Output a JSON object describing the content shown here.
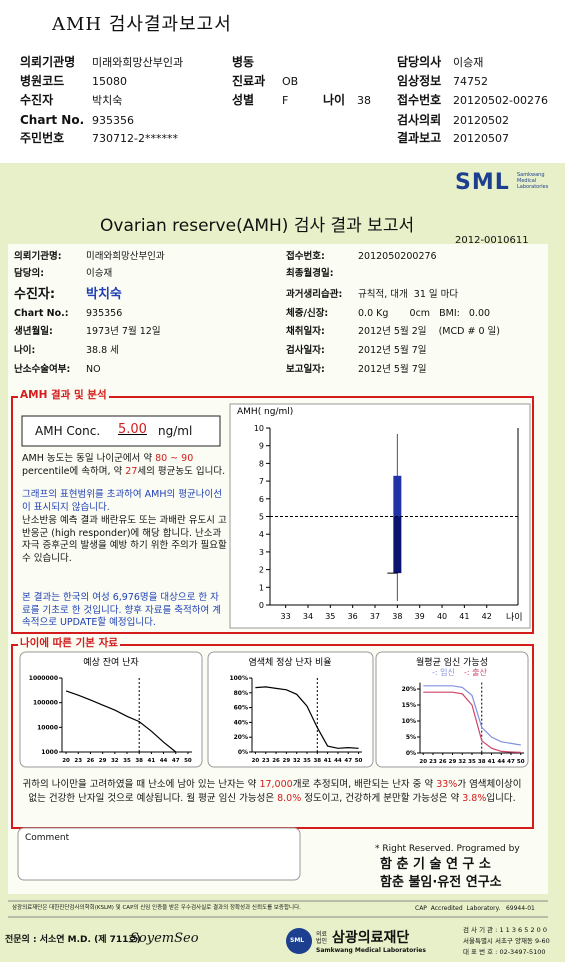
{
  "header": {
    "title": "AMH 검사결과보고서",
    "fields": [
      {
        "label": "의뢰기관명",
        "value": "미래와희망산부인과"
      },
      {
        "label": "병동"
      },
      {
        "label": "담당의사",
        "value": "이승재"
      },
      {
        "label": "병원코드",
        "value": "15080"
      },
      {
        "label": "진료과",
        "value": "OB"
      },
      {
        "label": "임상정보",
        "value": "74752"
      },
      {
        "label": "수진자",
        "value": "박치숙"
      },
      {
        "label": "성별",
        "value": "F"
      },
      {
        "label": "나이",
        "value": "38"
      },
      {
        "label": "접수번호",
        "value": "20120502-00276"
      },
      {
        "label": "Chart No.",
        "value": "935356"
      },
      {
        "label": "검사의뢰",
        "value": "20120502"
      },
      {
        "label": "주민번호",
        "value": "730712-2******"
      },
      {
        "label": "결과보고",
        "value": "20120507"
      }
    ]
  },
  "logo": {
    "name": "SML",
    "sub": "Samkwang Medical Laboratories"
  },
  "report": {
    "title": "Ovarian reserve(AMH) 검사 결과 보고서",
    "number": "2012-0010611",
    "left": [
      {
        "label": "의뢰기관명:",
        "value": "미래와희망산부인과"
      },
      {
        "label": "담당의:",
        "value": "이승재"
      },
      {
        "label": "수진자:",
        "value": "박치숙"
      },
      {
        "label": "Chart No.:",
        "value": "935356"
      },
      {
        "label": "생년월일:",
        "value": "1973년 7월 12일"
      },
      {
        "label": "나이:",
        "value": "38.8 세"
      },
      {
        "label": "난소수술여부:",
        "value": "NO"
      }
    ],
    "right": [
      {
        "label": "접수번호:",
        "value": "2012050200276"
      },
      {
        "label": "최종월경일:"
      },
      {
        "label": "과거생리습관:",
        "value": "규칙적, 대개  31 일 마다"
      },
      {
        "label": "체중/신장:",
        "value": "0.0 Kg       0cm   BMI:   0.00"
      },
      {
        "label": "채취일자:",
        "value": "2012년 5월 2일    (MCD # 0 일)"
      },
      {
        "label": "검사일자:",
        "value": "2012년 5월 7일"
      },
      {
        "label": "보고일자:",
        "value": "2012년 5월 7일"
      }
    ]
  },
  "analysis": {
    "heading": "AMH 결과 및 분석",
    "conc_label": "AMH Conc.",
    "conc": {
      "value": 5,
      "label": "5.00"
    },
    "unit": "ng/ml",
    "p1": [
      "AMH 농도는 동일 나이군에서 약 ",
      "80 ~ 90",
      " percentile에 속하며, 약 ",
      "27",
      "세의 평균농도 입니다."
    ],
    "p2": "그래프의 표현범위를 초과하여 AMH의 평균나이선이 표시되지 않습니다.",
    "p3": "난소반응 예측 결과 배란유도 또는 과배란 유도시 고반응군 (high responder)에 해당 합니다. 난소과자극 증후군의 발생을 예방 하기 위한 주의가 필요할 수 있습니다.",
    "p4": "본 결과는 한국의 여성 6,976명을 대상으로 한 자료를 기초로 한 것입니다. 향후 자료를 축적하여 계속적으로 UPDATE할 예정입니다."
  },
  "amh_chart": {
    "y_label": "AMH( ng/ml)",
    "x_label": "나이",
    "ylim": [
      0,
      10
    ],
    "yticks": [
      0,
      1,
      2,
      3,
      4,
      5,
      6,
      7,
      8,
      9,
      10
    ],
    "xlim": [
      32.3,
      43.4
    ],
    "xticks": [
      33,
      34,
      35,
      36,
      37,
      38,
      39,
      40,
      41,
      42
    ],
    "bar_x": 38,
    "low": 1.8,
    "high": 7.3,
    "colors": {
      "low": "#0a1470",
      "high": "#2233aa"
    }
  },
  "age_data": {
    "heading": "나이에 따른 기본 자료",
    "charts": [
      {
        "title": "예상 잔여 난자",
        "log": true,
        "ylim": [
          1000,
          1000000
        ],
        "yticks": [
          1000,
          10000,
          100000,
          1000000
        ],
        "xlim": [
          19,
          51
        ],
        "xticks": [
          20,
          23,
          26,
          29,
          32,
          35,
          38,
          41,
          44,
          47,
          50
        ],
        "marker_x": 38,
        "x": [
          20,
          23,
          26,
          29,
          32,
          35,
          38,
          41,
          44,
          47
        ],
        "series": [
          {
            "color": "#000000",
            "values": [
              300000,
              200000,
              130000,
              80000,
              50000,
              28000,
              17000,
              7000,
              2500,
              1000
            ]
          }
        ]
      },
      {
        "title": "염색체 정상 난자 비율",
        "ylim": [
          0,
          100
        ],
        "yticks": [
          {
            "value": 0,
            "label": "0%"
          },
          {
            "value": 20,
            "label": "20%"
          },
          {
            "value": 40,
            "label": "40%"
          },
          {
            "value": 60,
            "label": "60%"
          },
          {
            "value": 80,
            "label": "80%"
          },
          {
            "value": 100,
            "label": "100%"
          }
        ],
        "xlim": [
          19,
          51
        ],
        "xticks": [
          20,
          23,
          26,
          29,
          32,
          35,
          38,
          41,
          44,
          47,
          50
        ],
        "marker_x": 38,
        "x": [
          20,
          23,
          26,
          29,
          32,
          35,
          38,
          41,
          44,
          47,
          50
        ],
        "series": [
          {
            "color": "#000000",
            "values": [
              87,
              88,
              86,
              84,
              78,
              62,
              33,
              8,
              5,
              6,
              5
            ]
          }
        ]
      },
      {
        "title": "월평균 임신 가능성",
        "ylim": [
          0,
          22
        ],
        "yticks": [
          {
            "value": 0,
            "label": "0%"
          },
          {
            "value": 5,
            "label": "5%"
          },
          {
            "value": 10,
            "label": "10%"
          },
          {
            "value": 15,
            "label": "15%"
          },
          {
            "value": 20,
            "label": "20%"
          }
        ],
        "xlim": [
          19,
          51
        ],
        "xticks": [
          20,
          23,
          26,
          29,
          32,
          35,
          38,
          41,
          44,
          47,
          50
        ],
        "marker_x": 38,
        "x": [
          20,
          23,
          26,
          29,
          32,
          35,
          38,
          41,
          44,
          47,
          50
        ],
        "series": [
          {
            "name": "-: 임신",
            "color": "#8090dd",
            "values": [
              21,
              21,
              21,
              21,
              20.5,
              18,
              8,
              5,
              3.5,
              3,
              2.5
            ]
          },
          {
            "name": "-: 출산",
            "color": "#cc4466",
            "values": [
              19,
              19,
              19,
              19,
              18.5,
              15,
              3.8,
              1.5,
              0.5,
              0.3,
              0.2
            ]
          }
        ]
      }
    ],
    "summary": [
      "귀하의 나이만을 고려하였을 때 난소에 남아 있는 난자는 약 ",
      "17,000",
      "개로 추정되며, 배란되는 난자 중 약 ",
      "33%",
      "가 염색체이상이 없는 건강한 난자일 것으로 예상됩니다. 월 평균 임신 가능성은 ",
      "8.0%",
      " 정도이고, 건강하게 분만할 가능성은 약 ",
      "3.8%",
      "입니다."
    ]
  },
  "comment": "Comment",
  "credit": {
    "note": "* Right Reserved. Programed by",
    "org1": "함 춘 기 술 연 구 소",
    "org2": "함춘 불임·유전 연구소"
  },
  "footer": {
    "notice": "삼광의료재단은 대한진단검사의학회(KSLM) 및 CAP의 신임 인증을 받은 우수검사실로 결과의 정확성과 신뢰도를 보증합니다.",
    "cap": "CAP  Accredited  Laboratory.   69944-01",
    "doctor": "전문의 : 서소연 M.D. (제 711호)",
    "signature": "SoyemSeo",
    "logo": "SML",
    "org_type": "의료법인",
    "org": "삼광의료재단",
    "org_en": "Samkwang Medical Laboratories",
    "contact": [
      "검 사 기 관 : 1 1 3 6 5 2 0 0",
      "서울특별시 서초구 양재동 9-60",
      "대 표 번 호 : 02-3497-5100"
    ]
  }
}
